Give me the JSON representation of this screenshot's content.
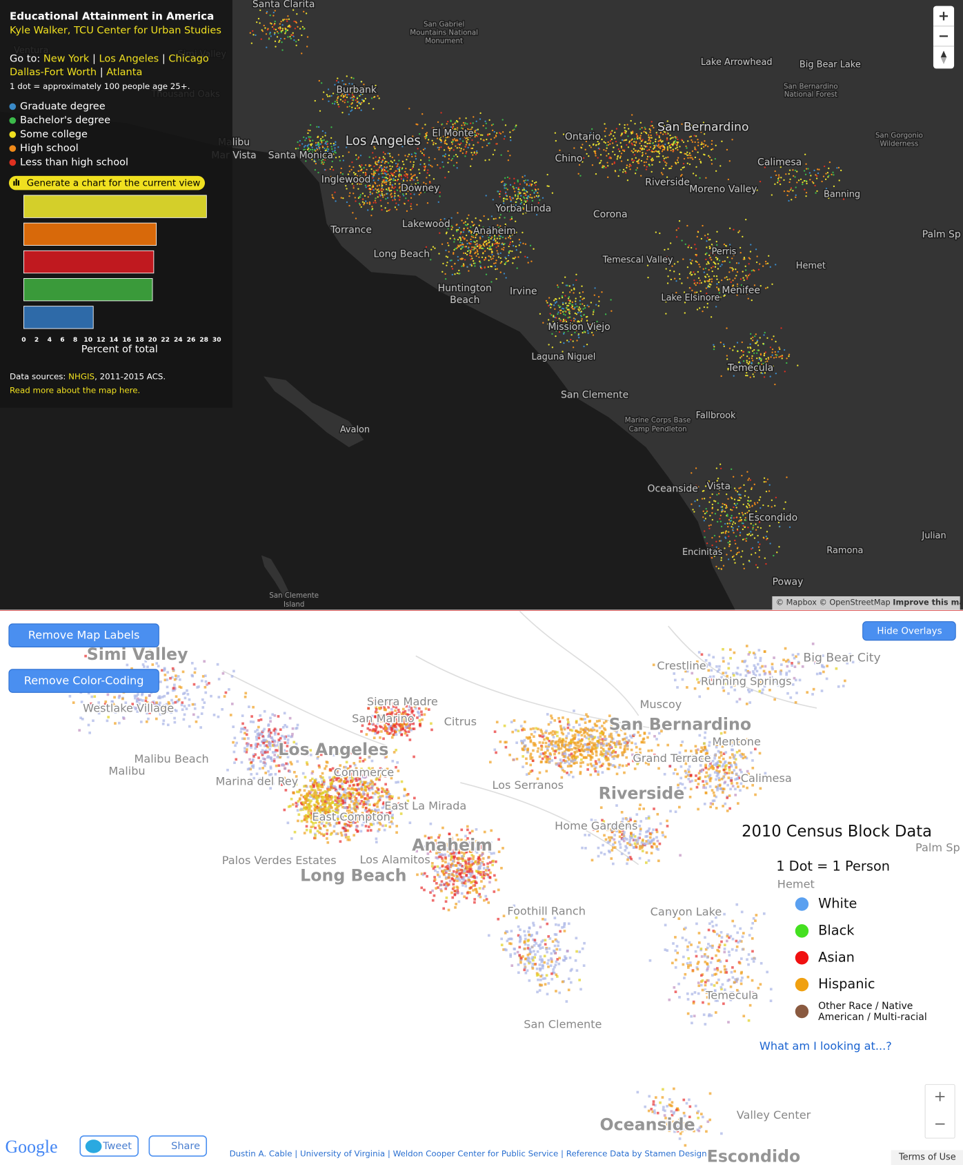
{
  "top_map": {
    "title": "Educational Attainment in America",
    "author": "Kyle Walker, TCU Center for Urban Studies",
    "goto_label": "Go to:",
    "links": [
      "New York",
      "Los Angeles",
      "Chicago",
      "Dallas-Fort Worth",
      "Atlanta"
    ],
    "separator": "|",
    "dot_note": "1 dot = approximately 100 people age 25+.",
    "legend": [
      {
        "label": "Graduate degree",
        "color": "#3a8ac8"
      },
      {
        "label": "Bachelor's degree",
        "color": "#3cba4a"
      },
      {
        "label": "Some college",
        "color": "#f0e020"
      },
      {
        "label": "High school",
        "color": "#f08a1a"
      },
      {
        "label": "Less than high school",
        "color": "#e03020"
      }
    ],
    "chart_button": "Generate a chart for the current view",
    "sources_label": "Data sources:",
    "sources_link": "NHGIS",
    "sources_rest": ", 2011-2015 ACS.",
    "read_more": "Read more about the map here.",
    "zoom_in": "+",
    "zoom_out": "−",
    "attribution": "© Mapbox © OpenStreetMap",
    "improve": "Improve this map",
    "places": [
      "Santa Clarita",
      "San Gabriel",
      "Mountains National",
      "Monument",
      "Ventura",
      "Simi Valley",
      "Thousand Oaks",
      "Burbank",
      "Malibu",
      "Mar Vista",
      "Santa Monica",
      "Los Angeles",
      "El Monte",
      "Ontario",
      "Chino",
      "San Bernardino",
      "Calimesa",
      "Lake Arrowhead",
      "Big Bear Lake",
      "San Bernardino",
      "National Forest",
      "San Gorgonio",
      "Wilderness",
      "Inglewood",
      "Downey",
      "Riverside",
      "Moreno Valley",
      "Banning",
      "Yorba Linda",
      "Corona",
      "Torrance",
      "Lakewood",
      "Anaheim",
      "Palm Sp",
      "Long Beach",
      "Temescal Valley",
      "Perris",
      "Hemet",
      "Huntington",
      "Beach",
      "Irvine",
      "Menifee",
      "Lake Elsinore",
      "Mission Viejo",
      "Laguna Niguel",
      "Temecula",
      "San Clemente",
      "Marine Corps Base",
      "Camp Pendleton",
      "Fallbrook",
      "Avalon",
      "Oceanside",
      "Vista",
      "Escondido",
      "Julian",
      "Encinitas",
      "Ramona",
      "Poway",
      "San Clemente",
      "Island"
    ]
  },
  "chart_data": {
    "type": "bar",
    "orientation": "horizontal",
    "values": [
      28.4,
      20.6,
      20.2,
      20.0,
      10.8
    ],
    "colors": [
      "#d4cf2a",
      "#d8690a",
      "#c0191f",
      "#3a9a3a",
      "#2e6aa8"
    ],
    "xlim": [
      0,
      30
    ],
    "xticks": [
      0,
      2,
      4,
      6,
      8,
      10,
      12,
      14,
      16,
      18,
      20,
      22,
      24,
      26,
      28,
      30
    ],
    "xlabel": "Percent of total"
  },
  "bottom_map": {
    "buttons": [
      "Remove Map Labels",
      "Remove Color-Coding"
    ],
    "hide_overlays": "Hide Overlays",
    "legend_title": "2010 Census Block Data",
    "legend_subtitle": "1 Dot = 1 Person",
    "legend": [
      {
        "lines": [
          "White"
        ],
        "color": "#5aa0f0"
      },
      {
        "lines": [
          "Black"
        ],
        "color": "#44e020"
      },
      {
        "lines": [
          "Asian"
        ],
        "color": "#f01010"
      },
      {
        "lines": [
          "Hispanic"
        ],
        "color": "#f0a010"
      },
      {
        "lines": [
          "Other Race / Native",
          "American / Multi-racial"
        ],
        "color": "#8a5a40"
      }
    ],
    "help_link": "What am I looking at...?",
    "zoom_in": "+",
    "zoom_out": "−",
    "google": "Google",
    "tweet": "Tweet",
    "share": "Share",
    "credits": "Dustin A. Cable | University of Virginia | Weldon Cooper Center for Public Service | Reference Data by Stamen Design",
    "terms": "Terms of Use",
    "places": [
      "Simi Valley",
      "Westlake Village",
      "Crestline",
      "Running Springs",
      "Big Bear City",
      "Sierra Madre",
      "San Marino",
      "Citrus",
      "Muscoy",
      "San Bernardino",
      "Mentone",
      "Los Angeles",
      "Grand Terrace",
      "Malibu Beach",
      "Malibu",
      "Commerce",
      "Calimesa",
      "Marina del Rey",
      "Los Serranos",
      "Riverside",
      "East La Mirada",
      "East Compton",
      "Home Gardens",
      "Anaheim",
      "Palm Sp",
      "Palos Verdes Estates",
      "Los Alamitos",
      "Long Beach",
      "Hemet",
      "Foothill Ranch",
      "Canyon Lake",
      "Temecula",
      "San Clemente",
      "Oceanside",
      "Valley Center",
      "Escondido"
    ]
  }
}
